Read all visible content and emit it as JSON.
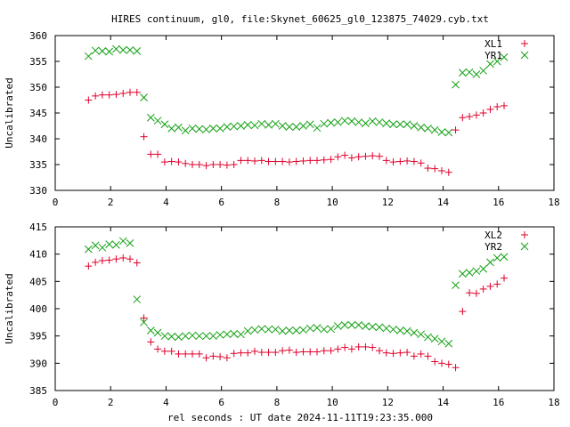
{
  "title": "HIRES continuum, gl0, file:Skynet_60625_gl0_123875_74029.cyb.txt",
  "xlabel": "rel seconds : UT date 2024-11-11T19:23:35.000",
  "colors": {
    "red": "#e0002a",
    "green": "#10a010",
    "axis": "#000000"
  },
  "chart_data": [
    {
      "type": "scatter",
      "ylabel": "Uncalibrated",
      "xlim": [
        0,
        18
      ],
      "ylim": [
        330,
        360
      ],
      "xticks": [
        0,
        2,
        4,
        6,
        8,
        10,
        12,
        14,
        16,
        18
      ],
      "yticks": [
        330,
        335,
        340,
        345,
        350,
        355,
        360
      ],
      "legend_position": "top-right",
      "series": [
        {
          "name": "XL1",
          "marker": "plus",
          "color": "#e0002a",
          "x": [
            1.2,
            1.45,
            1.7,
            1.95,
            2.2,
            2.45,
            2.7,
            2.95,
            3.2,
            3.45,
            3.7,
            3.95,
            4.2,
            4.45,
            4.7,
            4.95,
            5.2,
            5.45,
            5.7,
            5.95,
            6.2,
            6.45,
            6.7,
            6.95,
            7.2,
            7.45,
            7.7,
            7.95,
            8.2,
            8.45,
            8.7,
            8.95,
            9.2,
            9.45,
            9.7,
            9.95,
            10.2,
            10.45,
            10.7,
            10.95,
            11.2,
            11.45,
            11.7,
            11.95,
            12.2,
            12.45,
            12.7,
            12.95,
            13.2,
            13.45,
            13.7,
            13.95,
            14.2,
            14.45,
            14.7,
            14.95,
            15.2,
            15.45,
            15.7,
            15.95,
            16.2
          ],
          "y": [
            347.5,
            348.3,
            348.5,
            348.5,
            348.6,
            348.8,
            349.0,
            349.0,
            340.4,
            337.0,
            337.0,
            335.5,
            335.6,
            335.5,
            335.2,
            335.0,
            335.0,
            334.8,
            335.0,
            335.0,
            334.9,
            335.0,
            335.8,
            335.8,
            335.7,
            335.8,
            335.6,
            335.6,
            335.6,
            335.5,
            335.6,
            335.7,
            335.8,
            335.8,
            335.9,
            336.0,
            336.5,
            336.8,
            336.3,
            336.5,
            336.6,
            336.7,
            336.6,
            335.8,
            335.5,
            335.6,
            335.7,
            335.6,
            335.3,
            334.3,
            334.2,
            333.8,
            333.5,
            341.7,
            344.1,
            344.3,
            344.6,
            345.0,
            345.7,
            346.2,
            346.4
          ]
        },
        {
          "name": "YR1",
          "marker": "cross",
          "color": "#10a010",
          "x": [
            1.2,
            1.45,
            1.7,
            1.95,
            2.2,
            2.45,
            2.7,
            2.95,
            3.2,
            3.45,
            3.7,
            3.95,
            4.2,
            4.45,
            4.7,
            4.95,
            5.2,
            5.45,
            5.7,
            5.95,
            6.2,
            6.45,
            6.7,
            6.95,
            7.2,
            7.45,
            7.7,
            7.95,
            8.2,
            8.45,
            8.7,
            8.95,
            9.2,
            9.45,
            9.7,
            9.95,
            10.2,
            10.45,
            10.7,
            10.95,
            11.2,
            11.45,
            11.7,
            11.95,
            12.2,
            12.45,
            12.7,
            12.95,
            13.2,
            13.45,
            13.7,
            13.95,
            14.2,
            14.45,
            14.7,
            14.95,
            15.2,
            15.45,
            15.7,
            15.95,
            16.2
          ],
          "y": [
            356.0,
            357.1,
            357.0,
            356.9,
            357.4,
            357.2,
            357.2,
            357.0,
            348.0,
            344.1,
            343.5,
            342.8,
            342.0,
            342.2,
            341.6,
            342.0,
            341.9,
            341.8,
            342.0,
            342.0,
            342.3,
            342.4,
            342.5,
            342.7,
            342.6,
            342.9,
            342.7,
            342.9,
            342.5,
            342.3,
            342.3,
            342.5,
            342.8,
            342.1,
            342.9,
            343.1,
            343.2,
            343.5,
            343.4,
            343.2,
            343.0,
            343.4,
            343.2,
            343.0,
            342.8,
            342.8,
            342.8,
            342.5,
            342.2,
            342.0,
            341.7,
            341.3,
            341.2,
            350.5,
            352.8,
            352.9,
            352.5,
            353.2,
            354.5,
            355.0,
            355.8
          ]
        }
      ]
    },
    {
      "type": "scatter",
      "ylabel": "Uncalibrated",
      "xlim": [
        0,
        18
      ],
      "ylim": [
        385,
        415
      ],
      "xticks": [
        0,
        2,
        4,
        6,
        8,
        10,
        12,
        14,
        16,
        18
      ],
      "yticks": [
        385,
        390,
        395,
        400,
        405,
        410,
        415
      ],
      "legend_position": "top-right",
      "series": [
        {
          "name": "XL2",
          "marker": "plus",
          "color": "#e0002a",
          "x": [
            1.2,
            1.45,
            1.7,
            1.95,
            2.2,
            2.45,
            2.7,
            2.95,
            3.2,
            3.45,
            3.7,
            3.95,
            4.2,
            4.45,
            4.7,
            4.95,
            5.2,
            5.45,
            5.7,
            5.95,
            6.2,
            6.45,
            6.7,
            6.95,
            7.2,
            7.45,
            7.7,
            7.95,
            8.2,
            8.45,
            8.7,
            8.95,
            9.2,
            9.45,
            9.7,
            9.95,
            10.2,
            10.45,
            10.7,
            10.95,
            11.2,
            11.45,
            11.7,
            11.95,
            12.2,
            12.45,
            12.7,
            12.95,
            13.2,
            13.45,
            13.7,
            13.95,
            14.2,
            14.45,
            14.7,
            14.95,
            15.2,
            15.45,
            15.7,
            15.95,
            16.2
          ],
          "y": [
            407.8,
            408.5,
            408.8,
            408.9,
            409.1,
            409.3,
            409.1,
            408.4,
            398.3,
            393.9,
            392.6,
            392.2,
            392.2,
            391.7,
            391.7,
            391.7,
            391.7,
            391.0,
            391.3,
            391.2,
            391.0,
            391.8,
            391.9,
            391.9,
            392.2,
            392.0,
            392.0,
            392.0,
            392.3,
            392.4,
            392.0,
            392.1,
            392.1,
            392.1,
            392.3,
            392.3,
            392.6,
            392.9,
            392.6,
            393.0,
            393.0,
            392.9,
            392.3,
            391.9,
            391.8,
            391.9,
            392.0,
            391.3,
            391.7,
            391.3,
            390.3,
            390.0,
            389.8,
            389.2,
            399.5,
            402.9,
            402.8,
            403.6,
            404.1,
            404.5,
            405.6
          ]
        },
        {
          "name": "YR2",
          "marker": "cross",
          "color": "#10a010",
          "x": [
            1.2,
            1.45,
            1.7,
            1.95,
            2.2,
            2.45,
            2.7,
            2.95,
            3.2,
            3.45,
            3.7,
            3.95,
            4.2,
            4.45,
            4.7,
            4.95,
            5.2,
            5.45,
            5.7,
            5.95,
            6.2,
            6.45,
            6.7,
            6.95,
            7.2,
            7.45,
            7.7,
            7.95,
            8.2,
            8.45,
            8.7,
            8.95,
            9.2,
            9.45,
            9.7,
            9.95,
            10.2,
            10.45,
            10.7,
            10.95,
            11.2,
            11.45,
            11.7,
            11.95,
            12.2,
            12.45,
            12.7,
            12.95,
            13.2,
            13.45,
            13.7,
            13.95,
            14.2,
            14.45,
            14.7,
            14.95,
            15.2,
            15.45,
            15.7,
            15.95,
            16.2
          ],
          "y": [
            410.9,
            411.6,
            411.2,
            411.8,
            411.7,
            412.4,
            412.0,
            401.7,
            397.5,
            396.0,
            395.6,
            395.0,
            394.9,
            394.8,
            395.0,
            395.1,
            395.0,
            395.0,
            395.0,
            395.2,
            395.3,
            395.4,
            395.3,
            395.9,
            396.1,
            396.3,
            396.2,
            396.2,
            395.9,
            396.0,
            396.0,
            396.1,
            396.4,
            396.5,
            396.2,
            396.3,
            396.8,
            397.0,
            397.0,
            397.0,
            396.8,
            396.7,
            396.6,
            396.4,
            396.2,
            396.0,
            395.9,
            395.6,
            395.3,
            394.8,
            394.5,
            394.0,
            393.6,
            404.3,
            406.4,
            406.6,
            406.9,
            407.3,
            408.5,
            409.3,
            409.5
          ]
        }
      ]
    }
  ]
}
